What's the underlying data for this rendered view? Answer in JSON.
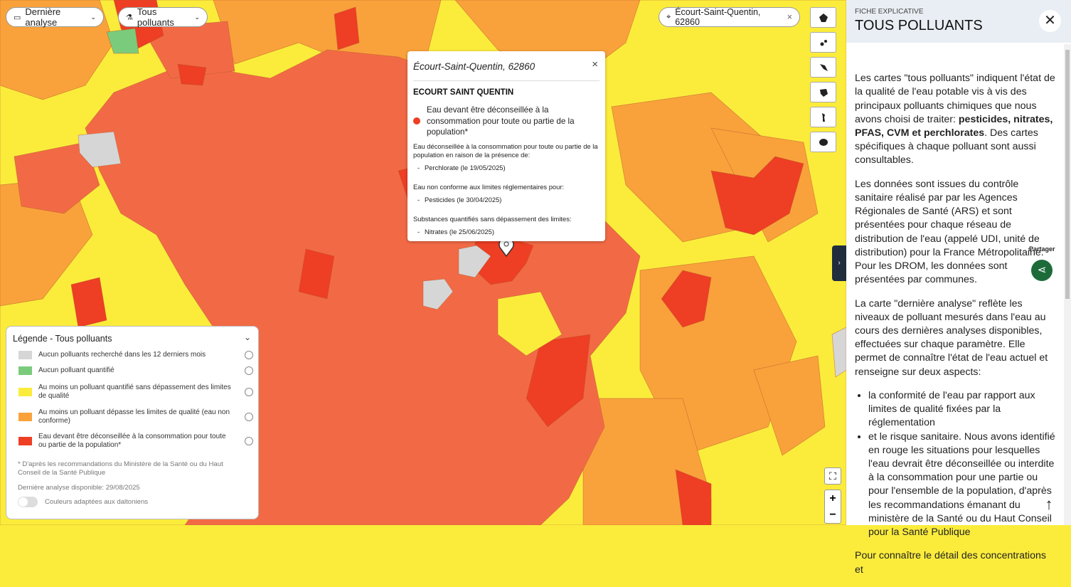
{
  "toolbar": {
    "analysis": "Dernière analyse",
    "pollutant": "Tous polluants",
    "search": "Écourt-Saint-Quentin, 62860"
  },
  "popup": {
    "title": "Écourt-Saint-Quentin, 62860",
    "commune": "ECOURT SAINT QUENTIN",
    "status": "Eau devant être déconseillée à la consommation pour toute ou partie de la population*",
    "sections": [
      {
        "heading": "Eau déconseillée à la consommation pour toute ou partie de la population en raison de la présence de:",
        "items": [
          "Perchlorate (le 19/05/2025)"
        ]
      },
      {
        "heading": "Eau non conforme aux limites réglementaires pour:",
        "items": [
          "Pesticides (le 30/04/2025)"
        ]
      },
      {
        "heading": "Substances quantifiés sans dépassement des limites:",
        "items": [
          "Nitrates (le 25/06/2025)"
        ]
      }
    ]
  },
  "legend": {
    "title": "Légende - Tous polluants",
    "items": [
      {
        "label": "Aucun polluants recherché dans les 12 derniers mois",
        "color": "#d6d6d6"
      },
      {
        "label": "Aucun polluant quantifié",
        "color": "#7acc7c"
      },
      {
        "label": "Au moins un polluant quantifié sans dépassement des limites de qualité",
        "color": "#fbec3c"
      },
      {
        "label": "Au moins un polluant dépasse les limites de qualité (eau non conforme)",
        "color": "#f9a23b"
      },
      {
        "label": "Eau devant être déconseillée à la consommation pour toute ou partie de la population*",
        "color": "#ee3e24"
      }
    ],
    "footnote": "* D'après les recommandations du Ministère de la Santé ou du Haut Conseil de la Santé Publique",
    "last_analysis": "Dernière analyse disponible: 29/08/2025",
    "toggle": "Couleurs adaptées aux daltoniens"
  },
  "panel": {
    "kicker": "FICHE EXPLICATIVE",
    "title": "TOUS POLLUANTS",
    "p1_before": "Les cartes \"tous polluants\" indiquent l'état de la qualité de l'eau potable vis à vis des principaux polluants chimiques que nous avons choisi de traiter: ",
    "p1_bold": "pesticides, nitrates, PFAS, CVM et perchlorates",
    "p1_after": ". Des cartes spécifiques à chaque polluant sont aussi consultables.",
    "p2": "Les données sont issues du contrôle sanitaire réalisé par par les Agences Régionales de Santé (ARS) et sont présentées pour chaque réseau de distribution de l'eau (appelé UDI, unité de distribution) pour la France Métropolitaine. Pour les DROM, les données sont présentées par communes.",
    "p3": "La carte \"dernière analyse\" reflète les niveaux de polluant mesurés dans l'eau au cours des dernières analyses disponibles, effectuées sur chaque paramètre. Elle permet de connaître l'état de l'eau actuel et renseigne sur deux aspects:",
    "bullets": [
      "la conformité de l'eau par rapport aux limites de qualité fixées par la réglementation",
      "et le risque sanitaire. Nous avons identifié en rouge les situations pour lesquelles l'eau devrait être déconseillée ou interdite à la consommation pour une partie ou pour l'ensemble de la population, d'après les recommandations émanant du ministère de la Santé ou du Haut Conseil pour la Santé Publique"
    ],
    "p4": "Pour connaître le détail des concentrations et",
    "share": "Partager"
  }
}
